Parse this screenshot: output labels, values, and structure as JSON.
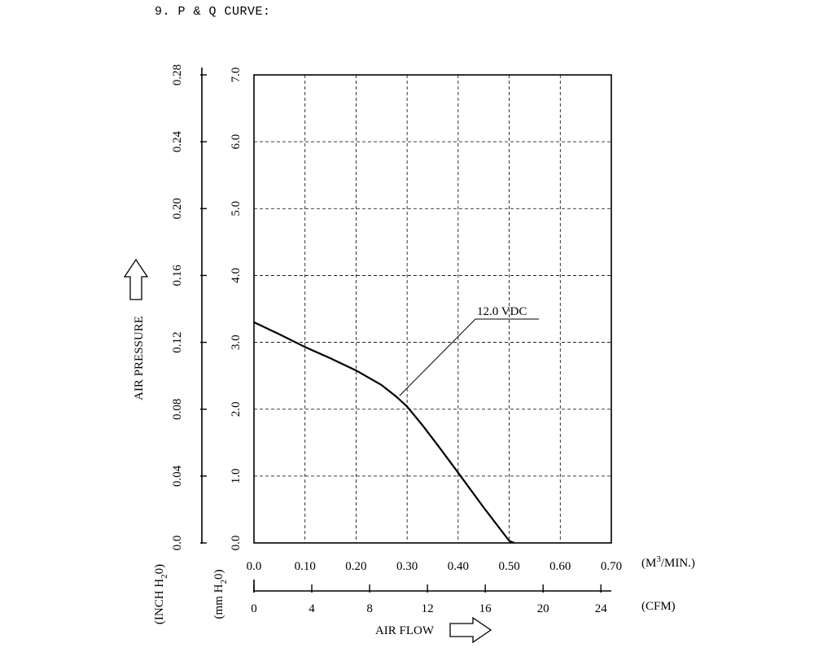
{
  "page": {
    "heading": "9. P & Q CURVE:"
  },
  "chart_data": {
    "type": "line",
    "title": "",
    "xlabel": "AIR FLOW",
    "ylabel": "AIR PRESSURE",
    "grid": true,
    "x_axis_primary": {
      "unit_base": "(M",
      "unit_sup": "3",
      "unit_tail": "/MIN.)",
      "range": [
        0,
        0.7
      ],
      "ticks": [
        "0.0",
        "0.10",
        "0.20",
        "0.30",
        "0.40",
        "0.50",
        "0.60",
        "0.70"
      ]
    },
    "x_axis_secondary": {
      "unit": "(CFM)",
      "range": [
        0,
        24.72
      ],
      "ticks": [
        "0",
        "4",
        "8",
        "12",
        "16",
        "20",
        "24"
      ]
    },
    "y_axis_primary": {
      "unit_base": "(mm H",
      "unit_sub": "2",
      "unit_tail": "0)",
      "range": [
        0,
        7.0
      ],
      "ticks": [
        "0.0",
        "1.0",
        "2.0",
        "3.0",
        "4.0",
        "5.0",
        "6.0",
        "7.0"
      ]
    },
    "y_axis_secondary": {
      "unit_base": "(INCH H",
      "unit_sub": "2",
      "unit_tail": "0)",
      "range": [
        0,
        0.28
      ],
      "ticks": [
        "0.0",
        "0.04",
        "0.08",
        "0.12",
        "0.16",
        "0.20",
        "0.24",
        "0.28"
      ]
    },
    "series": [
      {
        "name": "12.0 VDC",
        "x": [
          0.0,
          0.05,
          0.1,
          0.15,
          0.2,
          0.25,
          0.28,
          0.3,
          0.33,
          0.36,
          0.4,
          0.45,
          0.5,
          0.51
        ],
        "y": [
          3.3,
          3.12,
          2.93,
          2.76,
          2.58,
          2.36,
          2.18,
          2.04,
          1.76,
          1.46,
          1.05,
          0.53,
          0.03,
          0.0
        ]
      }
    ],
    "annotation": {
      "label": "12.0 VDC",
      "target": [
        0.285,
        2.2
      ]
    }
  }
}
